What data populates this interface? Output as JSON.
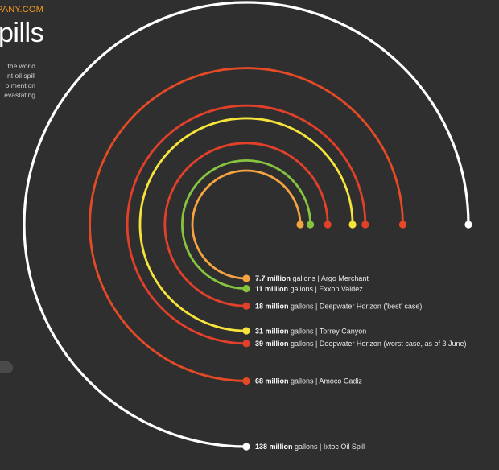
{
  "header": {
    "site": "PANY.COM",
    "title": "pills",
    "intro_lines": [
      "the world",
      "nt oil spill",
      "o mention",
      "evastating"
    ]
  },
  "chart_data": {
    "type": "radial-arc",
    "unit_label": "gallons",
    "spills": [
      {
        "value": 7.7,
        "value_text": "7.7 million",
        "name": "Argo Merchant",
        "color": "#f5a441"
      },
      {
        "value": 11,
        "value_text": "11 million",
        "name": "Exxon Valdez",
        "color": "#86c440"
      },
      {
        "value": 18,
        "value_text": "18 million",
        "name": "Deepwater Horizon ('best' case)",
        "color": "#e2402b"
      },
      {
        "value": 31,
        "value_text": "31 million",
        "name": "Torrey Canyon",
        "color": "#f7e43b"
      },
      {
        "value": 39,
        "value_text": "39 million",
        "name": "Deepwater Horizon (worst case, as of 3 June)",
        "color": "#e2402b"
      },
      {
        "value": 68,
        "value_text": "68 million",
        "name": "Amoco Cadiz",
        "color": "#e54a26"
      },
      {
        "value": 138,
        "value_text": "138 million",
        "name": "Ixtoc Oil Spill",
        "color": "#ffffff"
      }
    ]
  }
}
